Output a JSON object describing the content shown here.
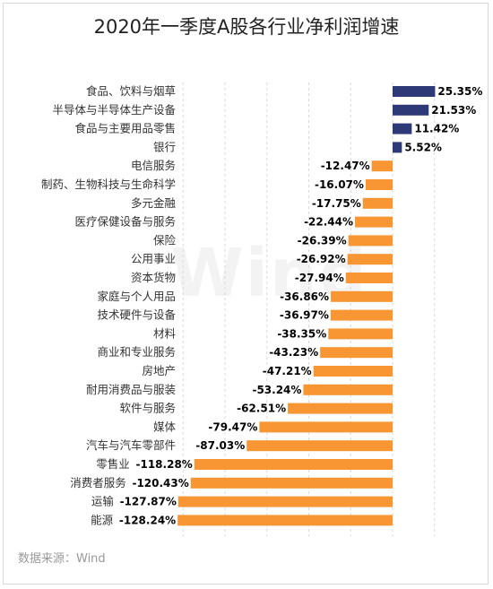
{
  "title": "2020年一季度A股各行业净利润增速",
  "source": "数据来源：Wind",
  "watermark": "Wind",
  "colors": {
    "positive": "#2e3a78",
    "negative": "#f79633",
    "grid": "#d9d9d9"
  },
  "chart_data": {
    "type": "bar",
    "orientation": "horizontal",
    "title": "2020年一季度A股各行业净利润增速",
    "unit": "%",
    "categories": [
      "食品、饮料与烟草",
      "半导体与半导体生产设备",
      "食品与主要用品零售",
      "银行",
      "电信服务",
      "制药、生物科技与生命科学",
      "多元金融",
      "医疗保健设备与服务",
      "保险",
      "公用事业",
      "资本货物",
      "家庭与个人用品",
      "技术硬件与设备",
      "材料",
      "商业和专业服务",
      "房地产",
      "耐用消费品与服装",
      "软件与服务",
      "媒体",
      "汽车与汽车零部件",
      "零售业",
      "消费者服务",
      "运输",
      "能源"
    ],
    "values": [
      25.35,
      21.53,
      11.42,
      5.52,
      -12.47,
      -16.07,
      -17.75,
      -22.44,
      -26.39,
      -26.92,
      -27.94,
      -36.86,
      -36.97,
      -38.35,
      -43.23,
      -47.21,
      -53.24,
      -62.51,
      -79.47,
      -87.03,
      -118.28,
      -120.43,
      -127.87,
      -128.24
    ],
    "value_labels": [
      "25.35%",
      "21.53%",
      "11.42%",
      "5.52%",
      "-12.47%",
      "-16.07%",
      "-17.75%",
      "-22.44%",
      "-26.39%",
      "-26.92%",
      "-27.94%",
      "-36.86%",
      "-36.97%",
      "-38.35%",
      "-43.23%",
      "-47.21%",
      "-53.24%",
      "-62.51%",
      "-79.47%",
      "-87.03%",
      "-118.28%",
      "-120.43%",
      "-127.87%",
      "-128.24%"
    ],
    "xlim": [
      -140,
      30
    ],
    "grid": true
  }
}
